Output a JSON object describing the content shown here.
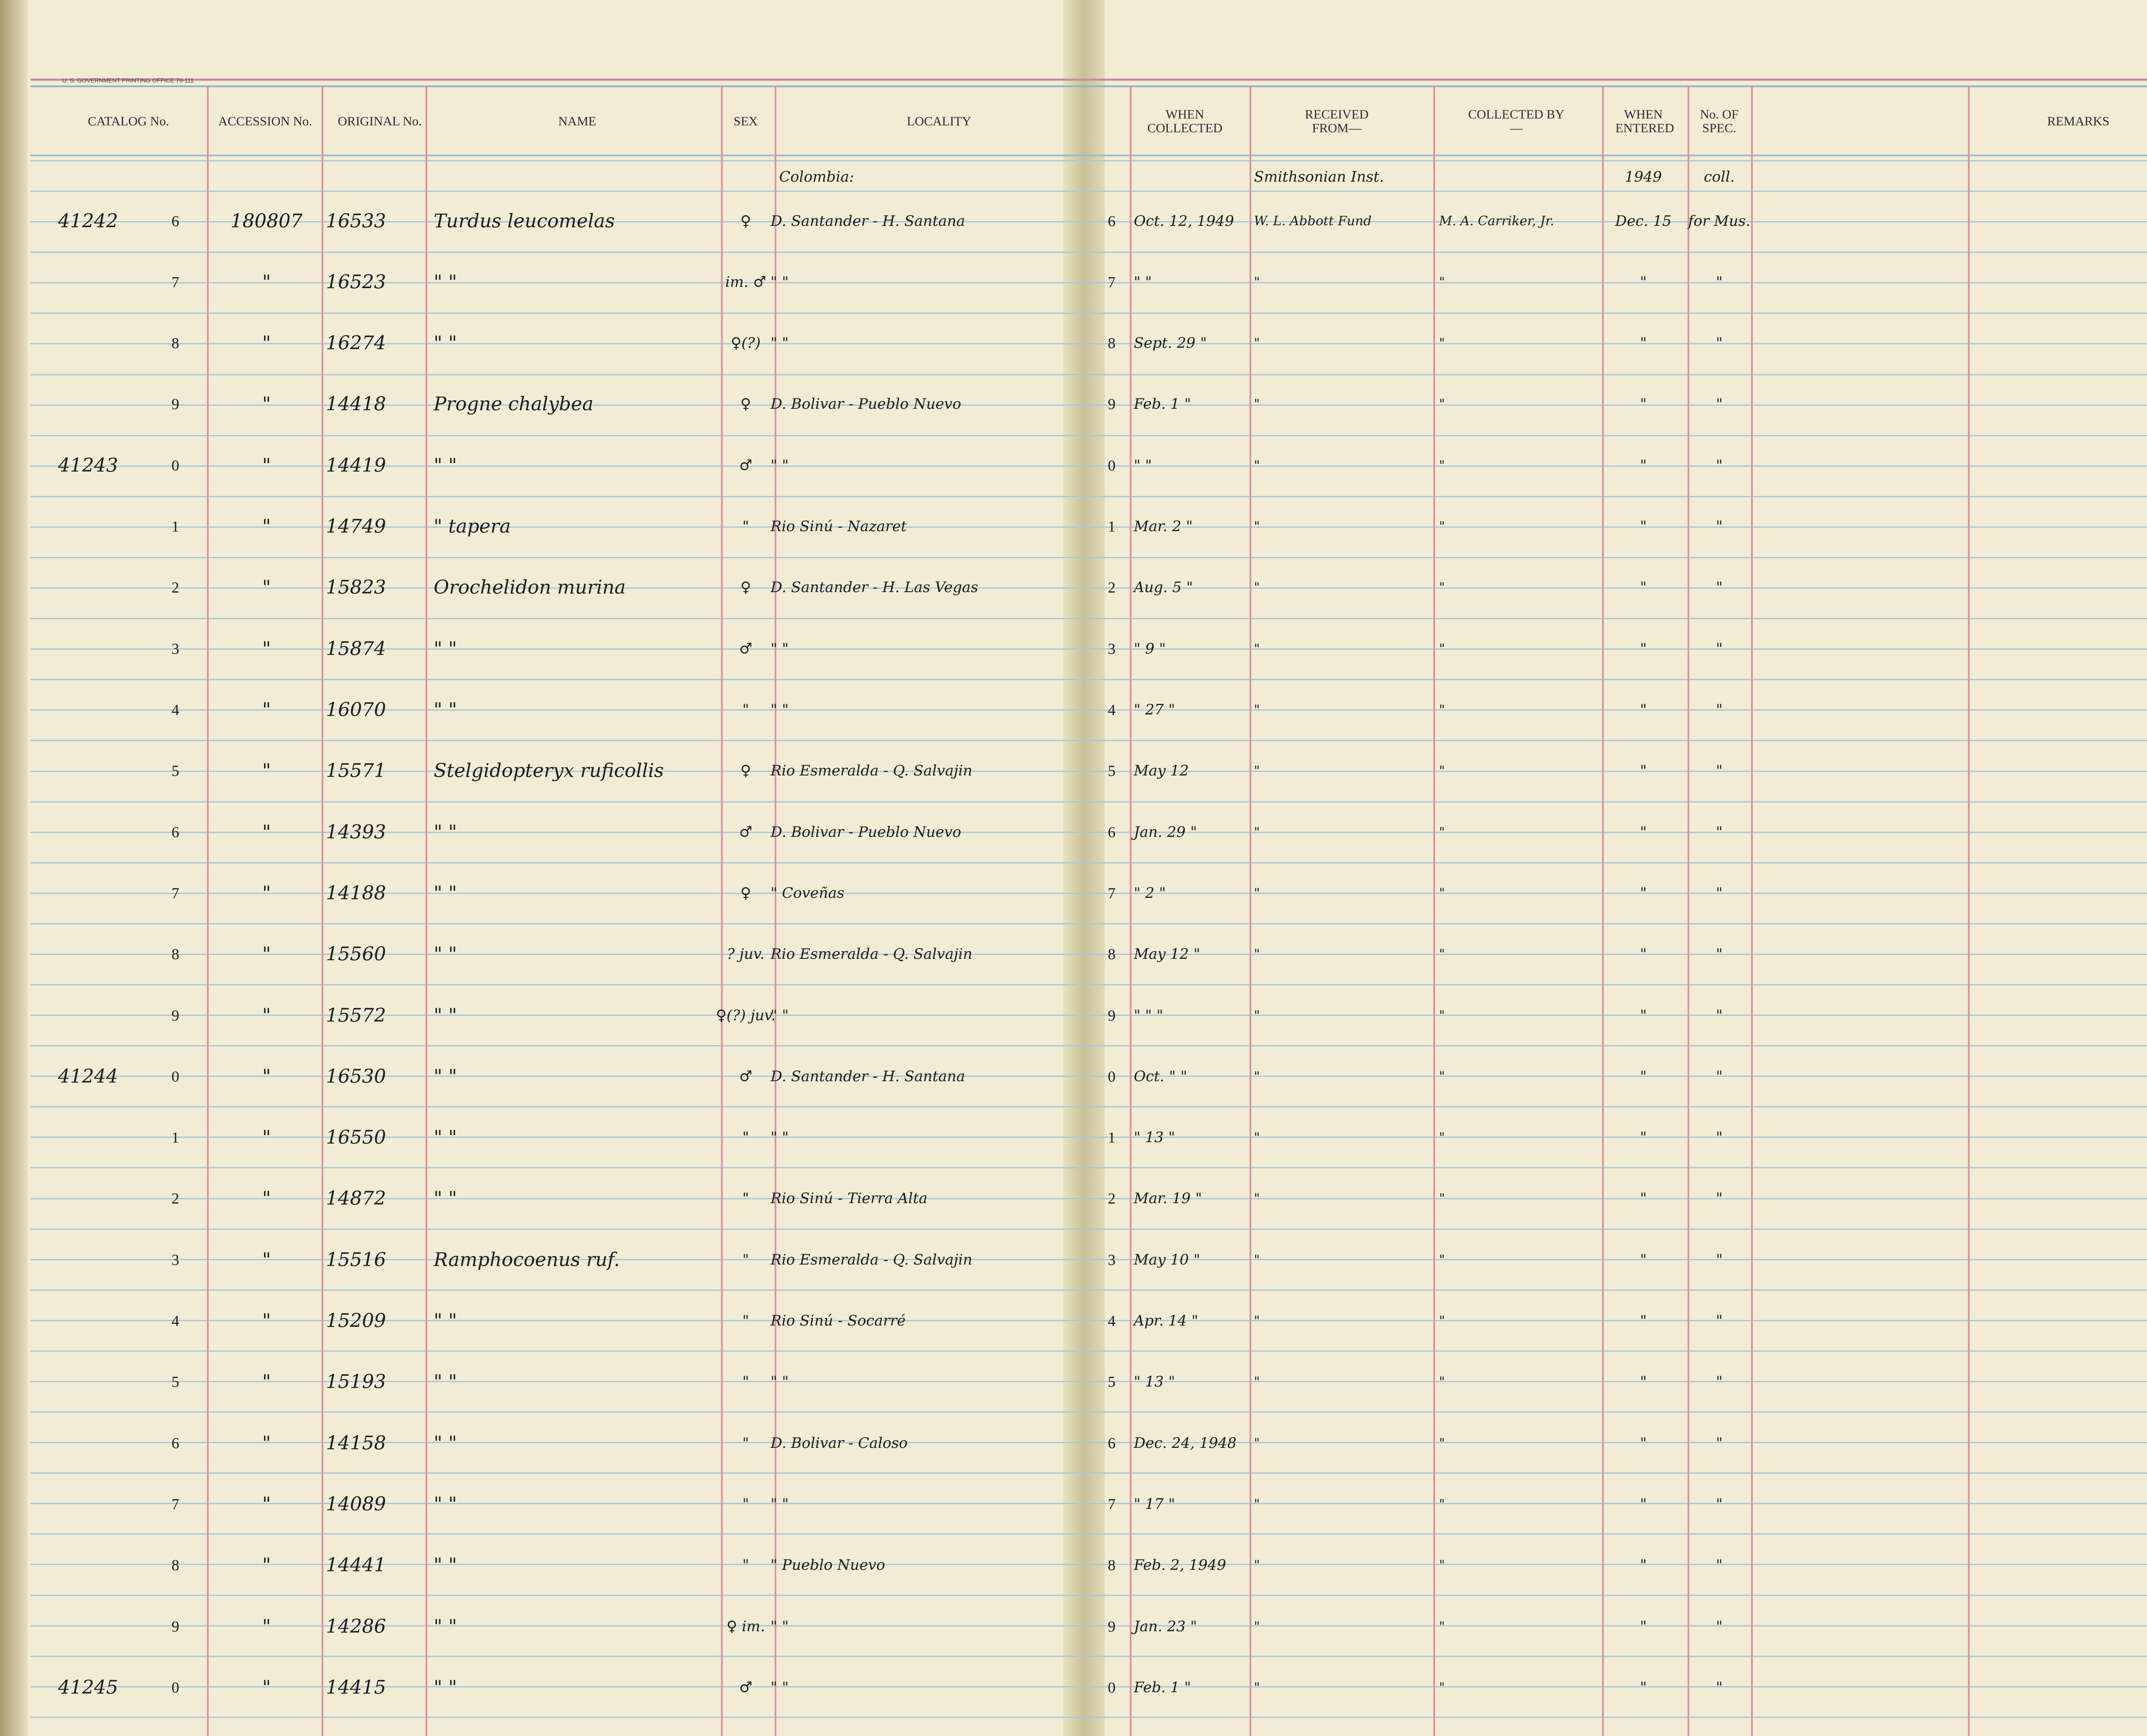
{
  "header": {
    "printer_note": "U. S. GOVERNMENT PRINTING OFFICE 76-111",
    "columns": {
      "catalog": "CATALOG No.",
      "accession": "ACCESSION No.",
      "original": "ORIGINAL No.",
      "name": "NAME",
      "sex": "SEX",
      "locality": "LOCALITY",
      "when_collected": "WHEN COLLECTED",
      "received_from": "RECEIVED FROM—",
      "collected_by": "COLLECTED BY—",
      "when_entered": "WHEN ENTERED",
      "no_of_spec": "No. OF SPEC.",
      "remarks": "REMARKS"
    }
  },
  "first_line": {
    "locality": "Colombia:",
    "received_from": "Smithsonian Inst.",
    "when_entered": "1949",
    "no_of_spec": "coll."
  },
  "rows": [
    {
      "catalog": "41242",
      "digit": "6",
      "accession": "180807",
      "original": "16533",
      "name": "Turdus leucomelas",
      "sex": "♀",
      "locality": "D. Santander - H. Santana",
      "digit_right": "6",
      "when_collected": "Oct. 12, 1949",
      "received_from": "W. L. Abbott Fund",
      "collected_by": "M. A. Carriker, Jr.",
      "when_entered": "Dec. 15",
      "no_of_spec": "for Mus."
    },
    {
      "digit": "7",
      "accession": "\"",
      "original": "16523",
      "name": "\"   \"",
      "sex": "im. ♂",
      "locality": "\"   \"",
      "digit_right": "7",
      "when_collected": "\" \"",
      "received_from": "\"",
      "collected_by": "\"",
      "when_entered": "\"",
      "no_of_spec": "\""
    },
    {
      "digit": "8",
      "accession": "\"",
      "original": "16274",
      "name": "\"   \"",
      "sex": "♀(?)",
      "locality": "\"   \"",
      "digit_right": "8",
      "when_collected": "Sept. 29 \"",
      "received_from": "\"",
      "collected_by": "\"",
      "when_entered": "\"",
      "no_of_spec": "\""
    },
    {
      "digit": "9",
      "accession": "\"",
      "original": "14418",
      "name": "Progne chalybea",
      "sex": "♀",
      "locality": "D. Bolivar - Pueblo Nuevo",
      "digit_right": "9",
      "when_collected": "Feb. 1 \"",
      "received_from": "\"",
      "collected_by": "\"",
      "when_entered": "\"",
      "no_of_spec": "\""
    },
    {
      "catalog": "41243",
      "digit": "0",
      "accession": "\"",
      "original": "14419",
      "name": "\"   \"",
      "sex": "♂",
      "locality": "\"   \"",
      "digit_right": "0",
      "when_collected": "\" \"",
      "received_from": "\"",
      "collected_by": "\"",
      "when_entered": "\"",
      "no_of_spec": "\""
    },
    {
      "digit": "1",
      "accession": "\"",
      "original": "14749",
      "name": "\"   tapera",
      "sex": "\"",
      "locality": "Rio Sinú - Nazaret",
      "digit_right": "1",
      "when_collected": "Mar. 2 \"",
      "received_from": "\"",
      "collected_by": "\"",
      "when_entered": "\"",
      "no_of_spec": "\""
    },
    {
      "digit": "2",
      "accession": "\"",
      "original": "15823",
      "name": "Orochelidon murina",
      "sex": "♀",
      "locality": "D. Santander - H. Las Vegas",
      "digit_right": "2",
      "when_collected": "Aug. 5 \"",
      "received_from": "\"",
      "collected_by": "\"",
      "when_entered": "\"",
      "no_of_spec": "\""
    },
    {
      "digit": "3",
      "accession": "\"",
      "original": "15874",
      "name": "\"   \"",
      "sex": "♂",
      "locality": "\"   \"",
      "digit_right": "3",
      "when_collected": "\" 9 \"",
      "received_from": "\"",
      "collected_by": "\"",
      "when_entered": "\"",
      "no_of_spec": "\""
    },
    {
      "digit": "4",
      "accession": "\"",
      "original": "16070",
      "name": "\"   \"",
      "sex": "\"",
      "locality": "\"   \"",
      "digit_right": "4",
      "when_collected": "\" 27 \"",
      "received_from": "\"",
      "collected_by": "\"",
      "when_entered": "\"",
      "no_of_spec": "\""
    },
    {
      "digit": "5",
      "accession": "\"",
      "original": "15571",
      "name": "Stelgidopteryx ruficollis",
      "sex": "♀",
      "locality": "Rio Esmeralda - Q. Salvajin",
      "digit_right": "5",
      "when_collected": "May 12",
      "received_from": "\"",
      "collected_by": "\"",
      "when_entered": "\"",
      "no_of_spec": "\""
    },
    {
      "digit": "6",
      "accession": "\"",
      "original": "14393",
      "name": "\"   \"",
      "sex": "♂",
      "locality": "D. Bolivar - Pueblo Nuevo",
      "digit_right": "6",
      "when_collected": "Jan. 29 \"",
      "received_from": "\"",
      "collected_by": "\"",
      "when_entered": "\"",
      "no_of_spec": "\""
    },
    {
      "digit": "7",
      "accession": "\"",
      "original": "14188",
      "name": "\"   \"",
      "sex": "♀",
      "locality": "\"   Coveñas",
      "digit_right": "7",
      "when_collected": "\" 2 \"",
      "received_from": "\"",
      "collected_by": "\"",
      "when_entered": "\"",
      "no_of_spec": "\""
    },
    {
      "digit": "8",
      "accession": "\"",
      "original": "15560",
      "name": "\"   \"",
      "sex": "? juv.",
      "locality": "Rio Esmeralda - Q. Salvajin",
      "digit_right": "8",
      "when_collected": "May 12 \"",
      "received_from": "\"",
      "collected_by": "\"",
      "when_entered": "\"",
      "no_of_spec": "\""
    },
    {
      "digit": "9",
      "accession": "\"",
      "original": "15572",
      "name": "\"   \"",
      "sex": "♀(?) juv.",
      "locality": "\"   \"",
      "digit_right": "9",
      "when_collected": "\" \" \"",
      "received_from": "\"",
      "collected_by": "\"",
      "when_entered": "\"",
      "no_of_spec": "\""
    },
    {
      "catalog": "41244",
      "digit": "0",
      "accession": "\"",
      "original": "16530",
      "name": "\"   \"",
      "sex": "♂",
      "locality": "D. Santander - H. Santana",
      "digit_right": "0",
      "when_collected": "Oct. \" \"",
      "received_from": "\"",
      "collected_by": "\"",
      "when_entered": "\"",
      "no_of_spec": "\""
    },
    {
      "digit": "1",
      "accession": "\"",
      "original": "16550",
      "name": "\"   \"",
      "sex": "\"",
      "locality": "\"   \"",
      "digit_right": "1",
      "when_collected": "\" 13 \"",
      "received_from": "\"",
      "collected_by": "\"",
      "when_entered": "\"",
      "no_of_spec": "\""
    },
    {
      "digit": "2",
      "accession": "\"",
      "original": "14872",
      "name": "\"   \"",
      "sex": "\"",
      "locality": "Rio Sinú - Tierra Alta",
      "digit_right": "2",
      "when_collected": "Mar. 19 \"",
      "received_from": "\"",
      "collected_by": "\"",
      "when_entered": "\"",
      "no_of_spec": "\""
    },
    {
      "digit": "3",
      "accession": "\"",
      "original": "15516",
      "name": "Ramphocoenus ruf.",
      "sex": "\"",
      "locality": "Rio Esmeralda - Q. Salvajin",
      "digit_right": "3",
      "when_collected": "May 10 \"",
      "received_from": "\"",
      "collected_by": "\"",
      "when_entered": "\"",
      "no_of_spec": "\""
    },
    {
      "digit": "4",
      "accession": "\"",
      "original": "15209",
      "name": "\"   \"",
      "sex": "\"",
      "locality": "Rio Sinú - Socarré",
      "digit_right": "4",
      "when_collected": "Apr. 14 \"",
      "received_from": "\"",
      "collected_by": "\"",
      "when_entered": "\"",
      "no_of_spec": "\""
    },
    {
      "digit": "5",
      "accession": "\"",
      "original": "15193",
      "name": "\"   \"",
      "sex": "\"",
      "locality": "\"   \"",
      "digit_right": "5",
      "when_collected": "\" 13 \"",
      "received_from": "\"",
      "collected_by": "\"",
      "when_entered": "\"",
      "no_of_spec": "\""
    },
    {
      "digit": "6",
      "accession": "\"",
      "original": "14158",
      "name": "\"   \"",
      "sex": "\"",
      "locality": "D. Bolivar - Caloso",
      "digit_right": "6",
      "when_collected": "Dec. 24, 1948",
      "received_from": "\"",
      "collected_by": "\"",
      "when_entered": "\"",
      "no_of_spec": "\""
    },
    {
      "digit": "7",
      "accession": "\"",
      "original": "14089",
      "name": "\"   \"",
      "sex": "\"",
      "locality": "\"   \"",
      "digit_right": "7",
      "when_collected": "\" 17 \"",
      "received_from": "\"",
      "collected_by": "\"",
      "when_entered": "\"",
      "no_of_spec": "\""
    },
    {
      "digit": "8",
      "accession": "\"",
      "original": "14441",
      "name": "\"   \"",
      "sex": "\"",
      "locality": "\"   Pueblo Nuevo",
      "digit_right": "8",
      "when_collected": "Feb. 2, 1949",
      "received_from": "\"",
      "collected_by": "\"",
      "when_entered": "\"",
      "no_of_spec": "\""
    },
    {
      "digit": "9",
      "accession": "\"",
      "original": "14286",
      "name": "\"   \"",
      "sex": "♀ im.",
      "locality": "\"   \"",
      "digit_right": "9",
      "when_collected": "Jan. 23 \"",
      "received_from": "\"",
      "collected_by": "\"",
      "when_entered": "\"",
      "no_of_spec": "\""
    },
    {
      "catalog": "41245",
      "digit": "0",
      "accession": "\"",
      "original": "14415",
      "name": "\"   \"",
      "sex": "♂",
      "locality": "\"   \"",
      "digit_right": "0",
      "when_collected": "Feb. 1 \"",
      "received_from": "\"",
      "collected_by": "\"",
      "when_entered": "\"",
      "no_of_spec": "\""
    }
  ]
}
